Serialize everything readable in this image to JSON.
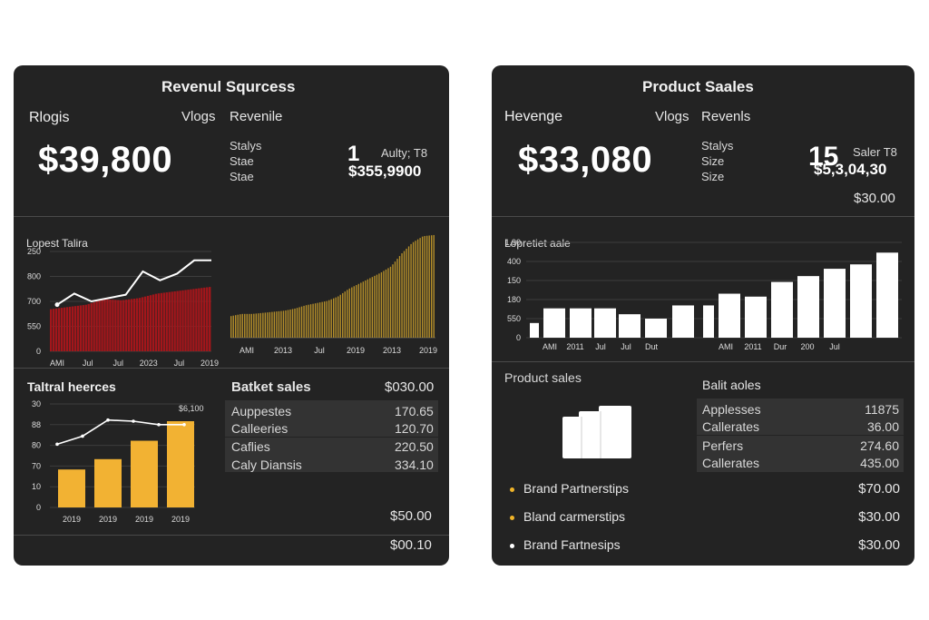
{
  "left_card": {
    "title": "Revenul Squrcess",
    "kpi_label": "Rlogis",
    "col1": "Vlogs",
    "col2": "Revenile",
    "big_value": "$39,800",
    "stats": [
      "Stalys",
      "Stae",
      "Stae"
    ],
    "side_num": "1",
    "side_label": "Aulty; T8",
    "side_value": "$355,9900",
    "chart1_label": "Lopest Talira",
    "chart1_yticks": [
      "250",
      "800",
      "700",
      "550",
      "0"
    ],
    "chart1_xticks": [
      "AMI",
      "Jul",
      "Jul",
      "2023",
      "Jul",
      "2019"
    ],
    "chart2_xticks": [
      "AMI",
      "2013",
      "Jul",
      "2019",
      "2013",
      "2019"
    ],
    "chart3_title": "Taltral heerces",
    "chart3_yticks": [
      "30",
      "88",
      "80",
      "70",
      "10",
      "0"
    ],
    "chart3_xticks": [
      "2019",
      "2019",
      "2019",
      "2019"
    ],
    "chart3_annot": "$6,100",
    "table_title": "Batket sales",
    "table_total": "$030.00",
    "table_rows": [
      {
        "name": "Auppestes",
        "value": "170.65"
      },
      {
        "name": "Calleeries",
        "value": "120.70"
      },
      {
        "name": "Caflies",
        "value": "220.50"
      },
      {
        "name": "Caly Diansis",
        "value": "334.10"
      }
    ],
    "footer_values": [
      "$50.00",
      "$00.10"
    ]
  },
  "right_card": {
    "title": "Product Saales",
    "kpi_label": "Hevenge",
    "col1": "Vlogs",
    "col2": "Revenls",
    "big_value": "$33,080",
    "stats": [
      "Stalys",
      "Size",
      "Size"
    ],
    "side_num": "15",
    "side_label": "Saler T8",
    "side_value": "$5,3,04,30",
    "sub_value": "$30.00",
    "chart_label": "Lopretiet aale",
    "chart_yticks": [
      "1,90",
      "400",
      "150",
      "180",
      "550",
      "0"
    ],
    "chart_xticks_a": [
      "AMI",
      "2011",
      "Jul",
      "Jul",
      "Dut"
    ],
    "chart_xticks_b": [
      "AMI",
      "2011",
      "Dur",
      "200",
      "Jul"
    ],
    "product_sales_label": "Product sales",
    "table_title": "Balit aoles",
    "table_rows": [
      {
        "name": "Applesses",
        "value": "11875"
      },
      {
        "name": "Callerates",
        "value": "36.00"
      },
      {
        "name": "Perfers",
        "value": "274.60"
      },
      {
        "name": "Callerates",
        "value": "435.00"
      }
    ],
    "list_items": [
      {
        "label": "Brand Partnerstips",
        "value": "$70.00",
        "color": "#f0b429"
      },
      {
        "label": "Bland carmerstips",
        "value": "$30.00",
        "color": "#f0b429"
      },
      {
        "label": "Brand Fartnesips",
        "value": "$30.00",
        "color": "#ffffff"
      }
    ]
  },
  "chart_data": [
    {
      "type": "area",
      "series": [
        {
          "values": [
            380,
            400,
            420,
            470,
            460,
            480,
            520,
            540,
            560,
            580
          ]
        },
        {
          "values": [
            420,
            520,
            450,
            480,
            510,
            720,
            640,
            700,
            820,
            820
          ]
        }
      ],
      "ylim": [
        0,
        900
      ]
    },
    {
      "type": "bar",
      "values": [
        20,
        22,
        22,
        23,
        24,
        25,
        27,
        30,
        32,
        34,
        38,
        45,
        50,
        55,
        60,
        66,
        78,
        88,
        94,
        95
      ],
      "ylim": [
        0,
        100
      ]
    },
    {
      "type": "bar",
      "categories": [
        "2019",
        "2019",
        "2019",
        "2019"
      ],
      "values": [
        33,
        42,
        58,
        75
      ],
      "line": [
        55,
        62,
        76,
        75,
        72,
        72
      ],
      "ylim": [
        0,
        90
      ]
    },
    {
      "type": "bar",
      "values": [
        20,
        40,
        40,
        40,
        32,
        26,
        44,
        44,
        60,
        56,
        76,
        84,
        94,
        100,
        116
      ],
      "ylim": [
        0,
        130
      ]
    }
  ],
  "colors": {
    "card_bg": "#232323",
    "red": "#a3161b",
    "gold": "#b58f2a",
    "yellow": "#f2b233",
    "white_bar": "#ffffff"
  }
}
